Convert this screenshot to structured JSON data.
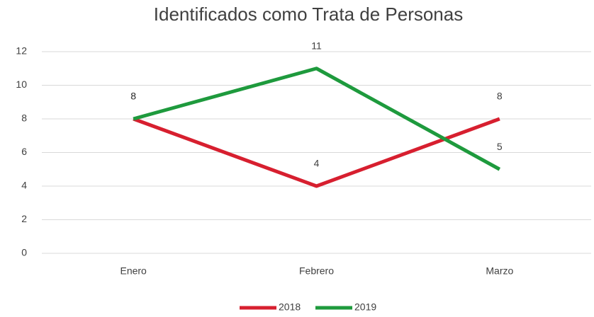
{
  "chart_data": {
    "type": "line",
    "title": "Identificados como Trata de Personas",
    "categories": [
      "Enero",
      "Febrero",
      "Marzo"
    ],
    "series": [
      {
        "name": "2018",
        "color": "#d71f2f",
        "values": [
          8,
          4,
          8
        ]
      },
      {
        "name": "2019",
        "color": "#1e9a3d",
        "values": [
          8,
          11,
          5
        ]
      }
    ],
    "ylim": [
      0,
      12
    ],
    "yticks": [
      0,
      2,
      4,
      6,
      8,
      10,
      12
    ],
    "grid": true,
    "legend": "bottom"
  }
}
